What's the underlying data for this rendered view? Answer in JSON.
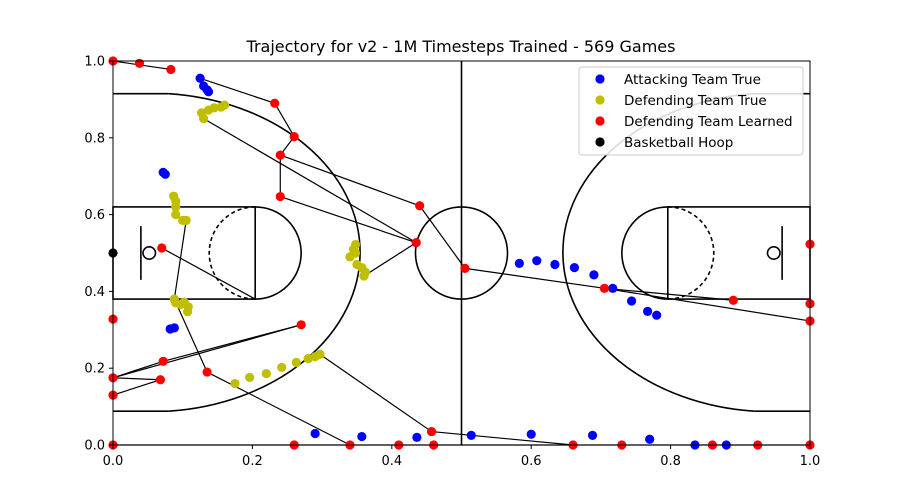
{
  "chart_data": {
    "type": "scatter",
    "title": "Trajectory for v2 - 1M Timesteps Trained - 569 Games",
    "xlabel": "",
    "ylabel": "",
    "xlim": [
      0.0,
      1.0
    ],
    "ylim": [
      0.0,
      1.0
    ],
    "x_ticks": [
      "0.0",
      "0.2",
      "0.4",
      "0.6",
      "0.8",
      "1.0"
    ],
    "y_ticks": [
      "0.0",
      "0.2",
      "0.4",
      "0.6",
      "0.8",
      "1.0"
    ],
    "grid": false,
    "legend_position": "top-right",
    "series": [
      {
        "name": "Attacking Team True",
        "color": "#0000ff",
        "points": [
          [
            0.125,
            0.955
          ],
          [
            0.13,
            0.935
          ],
          [
            0.135,
            0.925
          ],
          [
            0.137,
            0.92
          ],
          [
            0.072,
            0.71
          ],
          [
            0.075,
            0.705
          ],
          [
            0.082,
            0.302
          ],
          [
            0.088,
            0.305
          ],
          [
            0.29,
            0.03
          ],
          [
            0.357,
            0.022
          ],
          [
            0.436,
            0.02
          ],
          [
            0.514,
            0.025
          ],
          [
            0.6,
            0.028
          ],
          [
            0.688,
            0.025
          ],
          [
            0.77,
            0.015
          ],
          [
            0.835,
            0.0
          ],
          [
            0.88,
            0.0
          ],
          [
            0.583,
            0.473
          ],
          [
            0.608,
            0.48
          ],
          [
            0.634,
            0.47
          ],
          [
            0.662,
            0.462
          ],
          [
            0.69,
            0.443
          ],
          [
            0.717,
            0.408
          ],
          [
            0.744,
            0.375
          ],
          [
            0.767,
            0.348
          ],
          [
            0.78,
            0.338
          ]
        ]
      },
      {
        "name": "Defending Team True",
        "color": "#bfbf00",
        "points": [
          [
            0.127,
            0.865
          ],
          [
            0.13,
            0.85
          ],
          [
            0.137,
            0.872
          ],
          [
            0.145,
            0.878
          ],
          [
            0.155,
            0.88
          ],
          [
            0.16,
            0.885
          ],
          [
            0.087,
            0.648
          ],
          [
            0.09,
            0.635
          ],
          [
            0.09,
            0.62
          ],
          [
            0.09,
            0.6
          ],
          [
            0.1,
            0.585
          ],
          [
            0.105,
            0.585
          ],
          [
            0.088,
            0.38
          ],
          [
            0.09,
            0.37
          ],
          [
            0.097,
            0.366
          ],
          [
            0.102,
            0.372
          ],
          [
            0.108,
            0.36
          ],
          [
            0.107,
            0.347
          ],
          [
            0.34,
            0.49
          ],
          [
            0.345,
            0.51
          ],
          [
            0.348,
            0.5
          ],
          [
            0.348,
            0.522
          ],
          [
            0.35,
            0.47
          ],
          [
            0.357,
            0.462
          ],
          [
            0.362,
            0.45
          ],
          [
            0.36,
            0.44
          ],
          [
            0.175,
            0.16
          ],
          [
            0.196,
            0.176
          ],
          [
            0.22,
            0.186
          ],
          [
            0.242,
            0.202
          ],
          [
            0.263,
            0.215
          ],
          [
            0.28,
            0.225
          ],
          [
            0.29,
            0.23
          ],
          [
            0.297,
            0.236
          ]
        ]
      },
      {
        "name": "Defending Team Learned",
        "color": "#ff0000",
        "points": [
          [
            0.0,
            1.0
          ],
          [
            0.038,
            0.994
          ],
          [
            0.083,
            0.978
          ],
          [
            0.232,
            0.89
          ],
          [
            0.26,
            0.803
          ],
          [
            0.24,
            0.755
          ],
          [
            0.24,
            0.647
          ],
          [
            0.44,
            0.623
          ],
          [
            0.435,
            0.527
          ],
          [
            0.505,
            0.46
          ],
          [
            0.705,
            0.408
          ],
          [
            0.89,
            0.377
          ],
          [
            1.0,
            0.523
          ],
          [
            1.0,
            0.368
          ],
          [
            1.0,
            0.323
          ],
          [
            0.07,
            0.513
          ],
          [
            0.135,
            0.19
          ],
          [
            0.072,
            0.218
          ],
          [
            0.27,
            0.313
          ],
          [
            0.0,
            0.175
          ],
          [
            0.068,
            0.17
          ],
          [
            0.0,
            0.13
          ],
          [
            0.0,
            0.328
          ],
          [
            0.457,
            0.035
          ],
          [
            0.0,
            0.0
          ],
          [
            0.26,
            0.0
          ],
          [
            0.34,
            0.0
          ],
          [
            0.41,
            0.0
          ],
          [
            0.46,
            0.0
          ],
          [
            0.66,
            0.0
          ],
          [
            0.73,
            0.0
          ],
          [
            0.86,
            0.0
          ],
          [
            0.925,
            0.0
          ],
          [
            1.0,
            0.0
          ]
        ]
      },
      {
        "name": "Basketball Hoop",
        "color": "#000000",
        "points": [
          [
            0.0,
            0.5
          ]
        ]
      }
    ]
  }
}
